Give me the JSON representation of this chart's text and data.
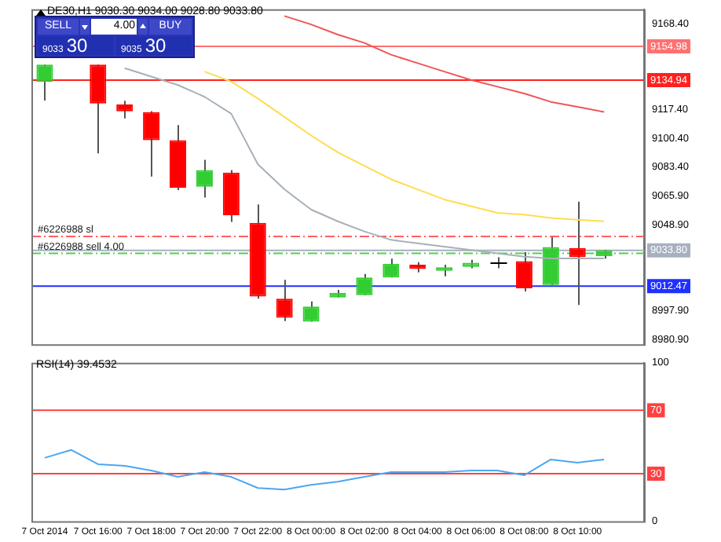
{
  "chart_data": [
    {
      "type": "candlestick",
      "title": "DE30,H1 9030.30 9034.00 9028.80 9033.80",
      "categories": [
        null,
        null,
        null,
        null,
        null,
        null,
        null,
        null,
        null,
        null,
        null,
        null,
        null,
        null,
        null,
        null,
        null,
        null,
        null,
        null,
        null,
        null,
        null
      ],
      "ohlc": [
        [
          9133.9,
          9144.1,
          9122.8,
          9144.1
        ],
        null,
        [
          9144.1,
          9144.1,
          9091.4,
          9121.0
        ],
        [
          9120.4,
          9122.6,
          9112.1,
          9116.3
        ],
        [
          9115.9,
          9116.5,
          9077.6,
          9099.2
        ],
        [
          9099.2,
          9108.2,
          9069.6,
          9071.0
        ],
        [
          9071.6,
          9087.5,
          9065.1,
          9081.5
        ],
        [
          9080.0,
          9081.5,
          9050.7,
          9054.6
        ],
        [
          9050.1,
          9061.1,
          9005.1,
          9006.3
        ],
        [
          9005.1,
          9016.2,
          8991.7,
          8993.7
        ],
        [
          8991.4,
          9003.4,
          8991.4,
          9000.4
        ],
        [
          9005.8,
          9010.3,
          9005.8,
          9008.5
        ],
        [
          9007.2,
          9019.8,
          9007.2,
          9017.7
        ],
        [
          9017.7,
          9028.8,
          9017.7,
          9025.8
        ],
        [
          9025.2,
          9026.7,
          9020.7,
          9022.8
        ],
        [
          9021.6,
          9025.2,
          9018.3,
          9023.7
        ],
        [
          9024.0,
          9028.2,
          9023.1,
          9026.4
        ],
        [
          9026.5,
          9029.7,
          9023.1,
          9026.5
        ],
        [
          9027.3,
          9032.7,
          9009.4,
          9011.2
        ],
        [
          9013.2,
          9041.7,
          9013.2,
          9035.7
        ],
        [
          9035.1,
          9062.7,
          9001.3,
          9029.8
        ],
        [
          9030.3,
          9034.0,
          9028.8,
          9033.8
        ],
        null
      ],
      "colors": [
        "#32cd32",
        "#32cd32",
        "#ff0000",
        "#ff0000",
        "#ff0000",
        "#ff0000",
        "#32cd32",
        "#ff0000",
        "#ff0000",
        "#ff0000",
        "#32cd32",
        "#32cd32",
        "#32cd32",
        "#32cd32",
        "#ff0000",
        "#32cd32",
        "#32cd32",
        "#000000",
        "#ff0000",
        "#32cd32",
        "#ff0000",
        "#32cd32",
        "#32cd32"
      ],
      "series": [
        {
          "type": "line",
          "color": "#f05555",
          "values": [
            null,
            null,
            null,
            null,
            null,
            null,
            null,
            null,
            null,
            9173,
            9168,
            9162,
            9157,
            9150,
            9145,
            9140,
            9135,
            9131,
            9127,
            9122,
            9119,
            9116,
            null
          ]
        },
        {
          "type": "line",
          "color": "#ffdc50",
          "values": [
            null,
            null,
            null,
            null,
            null,
            null,
            9140,
            9134,
            9124,
            9113,
            9102,
            9092,
            9084,
            9076,
            9070,
            9064,
            9060,
            9056,
            9055,
            9053,
            9052,
            9051,
            null
          ]
        },
        {
          "type": "line",
          "color": "#a8b0b8",
          "values": [
            null,
            null,
            null,
            9142,
            9137,
            9132,
            9125,
            9115,
            9085,
            9070,
            9058,
            9051,
            9045,
            9040,
            9038,
            9036,
            9034,
            9032,
            9030,
            9029,
            9029,
            9029,
            null
          ]
        }
      ],
      "ylim": [
        8978,
        9177
      ],
      "yticks": [
        {
          "value": 9168.4,
          "label": "9168.40"
        },
        {
          "value": 9117.4,
          "label": "9117.40"
        },
        {
          "value": 9100.4,
          "label": "9100.40"
        },
        {
          "value": 9083.4,
          "label": "9083.40"
        },
        {
          "value": 9065.9,
          "label": "9065.90"
        },
        {
          "value": 9048.9,
          "label": "9048.90"
        },
        {
          "value": 8997.9,
          "label": "8997.90"
        },
        {
          "value": 8980.9,
          "label": "8980.90"
        }
      ],
      "ref_lines": [
        {
          "axis": "y",
          "value": 9154.98,
          "label": "9154.98",
          "color": "#ff7070",
          "line_style": "solid"
        },
        {
          "axis": "y",
          "value": 9134.94,
          "label": "9134.94",
          "color": "#ff2020",
          "line_style": "solid"
        },
        {
          "axis": "y",
          "value": 9042.0,
          "label": "#6226988 sl",
          "color": "#ff6060",
          "line_style": "dashed"
        },
        {
          "axis": "y",
          "value": 9033.8,
          "label": "9033.80",
          "color": "#a8b0c0",
          "line_style": "solid"
        },
        {
          "axis": "y",
          "value": 9032.0,
          "label": "#6226988 sell 4.00",
          "color": "#50d050",
          "line_style": "dashed"
        },
        {
          "axis": "y",
          "value": 9012.47,
          "label": "9012.47",
          "color": "#2030ff",
          "line_style": "solid"
        }
      ],
      "annotations": [
        "SELL",
        "4.00",
        "BUY",
        "9033",
        "30",
        "9035",
        "30"
      ],
      "tick_labels": "y",
      "legend": false
    },
    {
      "type": "line",
      "title": "RSI(14) 39.4532",
      "categories": [
        "7 Oct 2014",
        null,
        "7 Oct 16:00",
        null,
        "7 Oct 18:00",
        null,
        "7 Oct 20:00",
        null,
        "7 Oct 22:00",
        null,
        "8 Oct 00:00",
        null,
        "8 Oct 02:00",
        null,
        "8 Oct 04:00",
        null,
        "8 Oct 06:00",
        null,
        "8 Oct 08:00",
        null,
        "8 Oct 10:00",
        null,
        null
      ],
      "series": [
        {
          "color": "#4da6f0",
          "values": [
            40,
            45,
            36,
            35,
            32,
            28,
            31,
            28,
            21,
            20,
            23,
            25,
            28,
            31,
            31,
            31,
            32,
            32,
            29,
            39,
            37,
            39,
            null
          ]
        }
      ],
      "ylim": [
        0,
        100
      ],
      "yticks": [
        0,
        100
      ],
      "ref_lines": [
        {
          "axis": "y",
          "value": 70,
          "label": "70",
          "color": "#ff4040",
          "line_style": "solid"
        },
        {
          "axis": "y",
          "value": 30,
          "label": "30",
          "color": "#ff4040",
          "line_style": "solid"
        }
      ],
      "legend": false
    }
  ]
}
